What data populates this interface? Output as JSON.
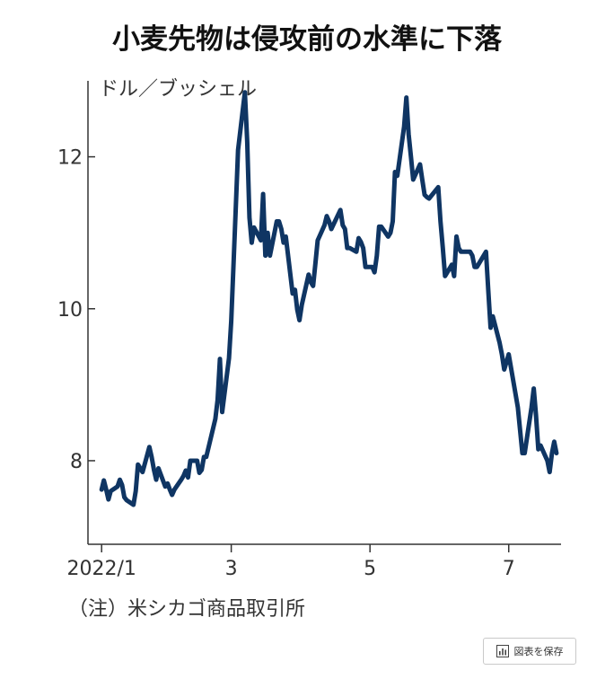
{
  "title": "小麦先物は侵攻前の水準に下落",
  "unit_label": "ドル／ブッシェル",
  "source": "（注）米シカゴ商品取引所",
  "save_button": {
    "label": "図表を保存",
    "icon": "chart-icon"
  },
  "colors": {
    "line": "#0f3563",
    "axis": "#333333"
  },
  "chart_data": {
    "type": "line",
    "title": "小麦先物は侵攻前の水準に下落",
    "ylabel": "ドル／ブッシェル",
    "xlabel": "",
    "ylim": [
      6.9,
      13.0
    ],
    "yticks": [
      8,
      10,
      12
    ],
    "xlim": [
      "2021-12-28",
      "2022-07-24"
    ],
    "xticks": [
      {
        "date": "2022-01-03",
        "label": "2022/1"
      },
      {
        "date": "2022-03-01",
        "label": "3"
      },
      {
        "date": "2022-05-01",
        "label": "5"
      },
      {
        "date": "2022-07-01",
        "label": "7"
      }
    ],
    "grid": false,
    "legend": "none",
    "series": [
      {
        "name": "",
        "points": [
          [
            "2022-01-03",
            7.62
          ],
          [
            "2022-01-04",
            7.74
          ],
          [
            "2022-01-05",
            7.62
          ],
          [
            "2022-01-06",
            7.49
          ],
          [
            "2022-01-07",
            7.6
          ],
          [
            "2022-01-10",
            7.66
          ],
          [
            "2022-01-11",
            7.75
          ],
          [
            "2022-01-12",
            7.68
          ],
          [
            "2022-01-13",
            7.52
          ],
          [
            "2022-01-14",
            7.48
          ],
          [
            "2022-01-17",
            7.42
          ],
          [
            "2022-01-18",
            7.6
          ],
          [
            "2022-01-19",
            7.95
          ],
          [
            "2022-01-20",
            7.9
          ],
          [
            "2022-01-21",
            7.85
          ],
          [
            "2022-01-24",
            8.18
          ],
          [
            "2022-01-25",
            8.05
          ],
          [
            "2022-01-26",
            7.88
          ],
          [
            "2022-01-27",
            7.75
          ],
          [
            "2022-01-28",
            7.9
          ],
          [
            "2022-01-31",
            7.66
          ],
          [
            "2022-02-01",
            7.7
          ],
          [
            "2022-02-02",
            7.62
          ],
          [
            "2022-02-03",
            7.55
          ],
          [
            "2022-02-04",
            7.62
          ],
          [
            "2022-02-07",
            7.75
          ],
          [
            "2022-02-08",
            7.8
          ],
          [
            "2022-02-09",
            7.87
          ],
          [
            "2022-02-10",
            7.78
          ],
          [
            "2022-02-11",
            8.0
          ],
          [
            "2022-02-14",
            8.0
          ],
          [
            "2022-02-15",
            7.84
          ],
          [
            "2022-02-16",
            7.88
          ],
          [
            "2022-02-17",
            8.05
          ],
          [
            "2022-02-18",
            8.05
          ],
          [
            "2022-02-22",
            8.55
          ],
          [
            "2022-02-23",
            8.8
          ],
          [
            "2022-02-24",
            9.34
          ],
          [
            "2022-02-25",
            8.64
          ],
          [
            "2022-02-28",
            9.35
          ],
          [
            "2022-03-01",
            9.84
          ],
          [
            "2022-03-02",
            10.6
          ],
          [
            "2022-03-03",
            11.34
          ],
          [
            "2022-03-04",
            12.09
          ],
          [
            "2022-03-07",
            12.85
          ],
          [
            "2022-03-08",
            12.2
          ],
          [
            "2022-03-09",
            11.2
          ],
          [
            "2022-03-10",
            10.87
          ],
          [
            "2022-03-11",
            11.07
          ],
          [
            "2022-03-14",
            10.9
          ],
          [
            "2022-03-15",
            11.51
          ],
          [
            "2022-03-16",
            10.7
          ],
          [
            "2022-03-17",
            11.0
          ],
          [
            "2022-03-18",
            10.7
          ],
          [
            "2022-03-21",
            11.15
          ],
          [
            "2022-03-22",
            11.15
          ],
          [
            "2022-03-23",
            11.05
          ],
          [
            "2022-03-24",
            10.87
          ],
          [
            "2022-03-25",
            10.95
          ],
          [
            "2022-03-28",
            10.2
          ],
          [
            "2022-03-29",
            10.25
          ],
          [
            "2022-03-30",
            9.99
          ],
          [
            "2022-03-31",
            9.85
          ],
          [
            "2022-04-01",
            10.05
          ],
          [
            "2022-04-04",
            10.45
          ],
          [
            "2022-04-05",
            10.35
          ],
          [
            "2022-04-06",
            10.3
          ],
          [
            "2022-04-07",
            10.6
          ],
          [
            "2022-04-08",
            10.9
          ],
          [
            "2022-04-11",
            11.1
          ],
          [
            "2022-04-12",
            11.22
          ],
          [
            "2022-04-13",
            11.15
          ],
          [
            "2022-04-14",
            11.05
          ],
          [
            "2022-04-18",
            11.3
          ],
          [
            "2022-04-19",
            11.1
          ],
          [
            "2022-04-20",
            11.05
          ],
          [
            "2022-04-21",
            10.8
          ],
          [
            "2022-04-22",
            10.8
          ],
          [
            "2022-04-25",
            10.75
          ],
          [
            "2022-04-26",
            10.93
          ],
          [
            "2022-04-27",
            10.88
          ],
          [
            "2022-04-28",
            10.8
          ],
          [
            "2022-04-29",
            10.55
          ],
          [
            "2022-05-02",
            10.55
          ],
          [
            "2022-05-03",
            10.48
          ],
          [
            "2022-05-04",
            10.7
          ],
          [
            "2022-05-05",
            11.08
          ],
          [
            "2022-05-06",
            11.08
          ],
          [
            "2022-05-09",
            10.95
          ],
          [
            "2022-05-10",
            11.0
          ],
          [
            "2022-05-11",
            11.15
          ],
          [
            "2022-05-12",
            11.8
          ],
          [
            "2022-05-13",
            11.75
          ],
          [
            "2022-05-16",
            12.4
          ],
          [
            "2022-05-17",
            12.78
          ],
          [
            "2022-05-18",
            12.3
          ],
          [
            "2022-05-19",
            12.0
          ],
          [
            "2022-05-20",
            11.7
          ],
          [
            "2022-05-23",
            11.9
          ],
          [
            "2022-05-24",
            11.7
          ],
          [
            "2022-05-25",
            11.5
          ],
          [
            "2022-05-26",
            11.47
          ],
          [
            "2022-05-27",
            11.45
          ],
          [
            "2022-05-31",
            11.6
          ],
          [
            "2022-06-01",
            11.15
          ],
          [
            "2022-06-02",
            10.8
          ],
          [
            "2022-06-03",
            10.43
          ],
          [
            "2022-06-06",
            10.58
          ],
          [
            "2022-06-07",
            10.43
          ],
          [
            "2022-06-08",
            10.95
          ],
          [
            "2022-06-09",
            10.8
          ],
          [
            "2022-06-10",
            10.75
          ],
          [
            "2022-06-13",
            10.75
          ],
          [
            "2022-06-14",
            10.75
          ],
          [
            "2022-06-15",
            10.7
          ],
          [
            "2022-06-16",
            10.55
          ],
          [
            "2022-06-17",
            10.55
          ],
          [
            "2022-06-21",
            10.75
          ],
          [
            "2022-06-22",
            10.25
          ],
          [
            "2022-06-23",
            9.75
          ],
          [
            "2022-06-24",
            9.9
          ],
          [
            "2022-06-27",
            9.55
          ],
          [
            "2022-06-28",
            9.4
          ],
          [
            "2022-06-29",
            9.2
          ],
          [
            "2022-06-30",
            9.3
          ],
          [
            "2022-07-01",
            9.4
          ],
          [
            "2022-07-05",
            8.7
          ],
          [
            "2022-07-06",
            8.4
          ],
          [
            "2022-07-07",
            8.1
          ],
          [
            "2022-07-08",
            8.1
          ],
          [
            "2022-07-11",
            8.7
          ],
          [
            "2022-07-12",
            8.95
          ],
          [
            "2022-07-13",
            8.6
          ],
          [
            "2022-07-14",
            8.15
          ],
          [
            "2022-07-15",
            8.2
          ],
          [
            "2022-07-18",
            8.0
          ],
          [
            "2022-07-19",
            7.85
          ],
          [
            "2022-07-20",
            8.1
          ],
          [
            "2022-07-21",
            8.25
          ],
          [
            "2022-07-22",
            8.1
          ]
        ]
      }
    ]
  }
}
